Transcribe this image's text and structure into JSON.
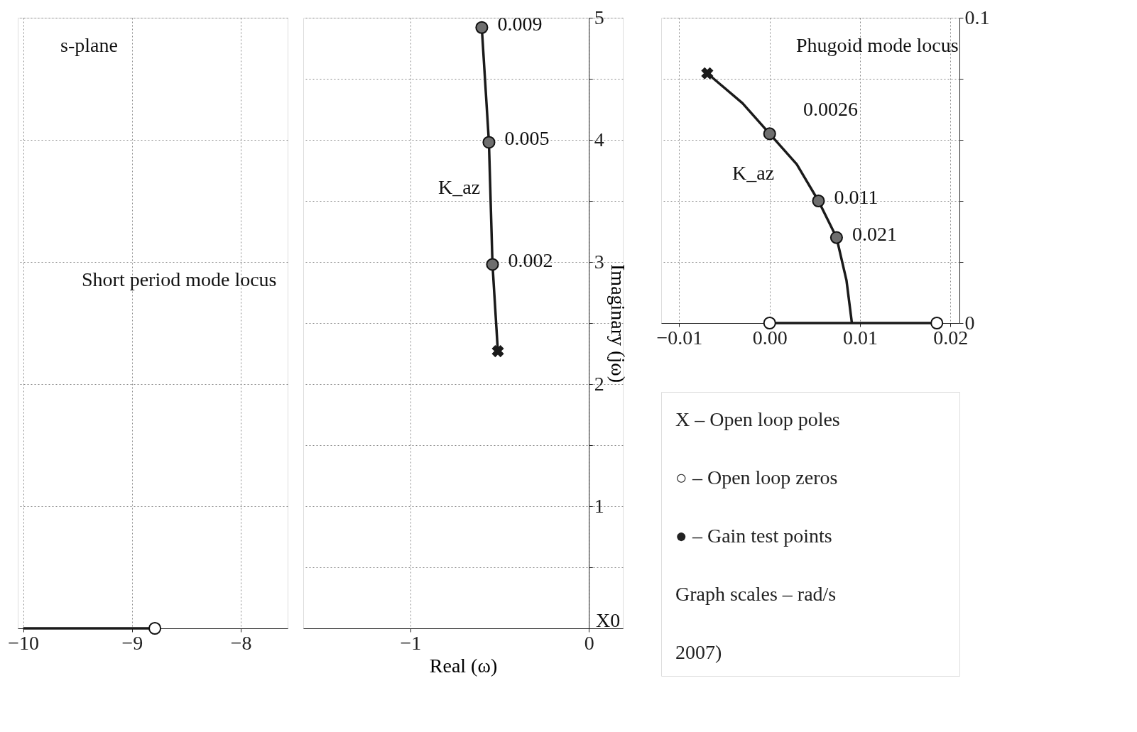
{
  "chart_data": [
    {
      "type": "line",
      "xlim": [
        -10.05,
        -7.57
      ],
      "ylim": [
        0,
        5
      ],
      "xticks": [
        {
          "value": -10,
          "label": "−10"
        },
        {
          "value": -9,
          "label": "−9"
        },
        {
          "value": -8,
          "label": "−8"
        }
      ],
      "yticks": [
        0,
        1,
        2,
        3,
        4,
        5
      ],
      "tick_labels": "x",
      "grid": true,
      "series": [
        {
          "type": "line",
          "x": [
            -10,
            -8.79
          ],
          "values": [
            0,
            0
          ],
          "color": "#1a1a1a"
        },
        {
          "type": "scatter",
          "marker": "circle",
          "x": [
            -8.79
          ],
          "values": [
            0
          ],
          "color": "#ffffff"
        }
      ],
      "annotations": [
        "s-plane",
        "Short period mode locus"
      ]
    },
    {
      "type": "line",
      "xlim": [
        -1.6,
        0.19
      ],
      "ylim": [
        0,
        5
      ],
      "xticks": [
        {
          "value": -1,
          "label": "−1"
        },
        {
          "value": 0,
          "label": "0"
        }
      ],
      "yticks": [
        {
          "value": 0,
          "label": null
        },
        {
          "value": 0.5,
          "label": null
        },
        {
          "value": 1,
          "label": "1"
        },
        {
          "value": 1.5,
          "label": null
        },
        {
          "value": 2,
          "label": "2"
        },
        {
          "value": 2.5,
          "label": null
        },
        {
          "value": 3,
          "label": "3"
        },
        {
          "value": 3.5,
          "label": null
        },
        {
          "value": 4,
          "label": "4"
        },
        {
          "value": 4.5,
          "label": null
        },
        {
          "value": 5,
          "label": "5"
        }
      ],
      "grid": true,
      "xlabel": "Real (ω)",
      "ylabel": "Imaginary (jω)",
      "series": [
        {
          "type": "line",
          "x": [
            -0.51,
            -0.54,
            -0.56,
            -0.6
          ],
          "values": [
            2.27,
            2.98,
            3.98,
            4.92
          ],
          "color": "#1a1a1a"
        },
        {
          "type": "scatter",
          "marker": "circle",
          "x": [
            -0.54,
            -0.56,
            -0.6
          ],
          "values": [
            2.98,
            3.98,
            4.92
          ],
          "color": "#6e6e6e"
        },
        {
          "type": "scatter",
          "marker": "cross",
          "x": [
            -0.51
          ],
          "values": [
            2.27
          ],
          "color": "#1a1a1a"
        }
      ],
      "annotations": [
        {
          "text": "0.002",
          "x": -0.54,
          "y": 2.98
        },
        {
          "text": "0.005",
          "x": -0.56,
          "y": 3.98
        },
        {
          "text": "0.009",
          "x": -0.6,
          "y": 4.92
        },
        "K_az",
        "X0"
      ]
    },
    {
      "type": "line",
      "xlim": [
        -0.012,
        0.021
      ],
      "ylim": [
        0,
        0.1
      ],
      "xticks": [
        {
          "value": -0.01,
          "label": "−0.01"
        },
        {
          "value": 0,
          "label": "0.00"
        },
        {
          "value": 0.01,
          "label": "0.01"
        },
        {
          "value": 0.02,
          "label": "0.02"
        }
      ],
      "yticks": [
        {
          "value": 0,
          "label": "0"
        },
        {
          "value": 0.02,
          "label": null
        },
        {
          "value": 0.04,
          "label": null
        },
        {
          "value": 0.06,
          "label": null
        },
        {
          "value": 0.08,
          "label": null
        },
        {
          "value": 0.1,
          "label": "0.1"
        }
      ],
      "grid": true,
      "series": [
        {
          "type": "line",
          "x": [
            -0.0069,
            -0.003,
            0,
            0.003,
            0.0054,
            0.0074,
            0.0085,
            0.0091
          ],
          "values": [
            0.0818,
            0.072,
            0.062,
            0.052,
            0.04,
            0.028,
            0.014,
            0
          ],
          "color": "#1a1a1a"
        },
        {
          "type": "line",
          "x": [
            0,
            0.0185
          ],
          "values": [
            0,
            0
          ],
          "color": "#1a1a1a"
        },
        {
          "type": "scatter",
          "marker": "circle",
          "x": [
            0,
            0.0054,
            0.0074
          ],
          "values": [
            0.062,
            0.04,
            0.028
          ],
          "color": "#6e6e6e"
        },
        {
          "type": "scatter",
          "marker": "cross",
          "x": [
            -0.0069
          ],
          "values": [
            0.0818
          ],
          "color": "#1a1a1a"
        },
        {
          "type": "scatter",
          "marker": "circle",
          "x": [
            0,
            0.0185
          ],
          "values": [
            0,
            0
          ],
          "color": "#ffffff"
        }
      ],
      "annotations": [
        "Phugoid mode locus",
        "0.0026",
        "K_az",
        {
          "text": "0.011",
          "x": 0.0054,
          "y": 0.04
        },
        {
          "text": "0.021",
          "x": 0.0074,
          "y": 0.028
        }
      ]
    },
    {
      "type": "other",
      "annotations": [
        "X – Open loop poles",
        "○ – Open loop zeros",
        "● – Gain test points",
        "Graph scales – rad/s",
        "2007)"
      ]
    }
  ]
}
